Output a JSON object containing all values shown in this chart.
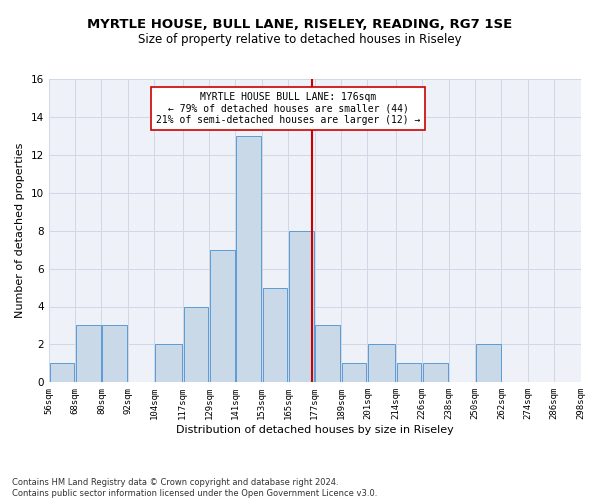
{
  "title1": "MYRTLE HOUSE, BULL LANE, RISELEY, READING, RG7 1SE",
  "title2": "Size of property relative to detached houses in Riseley",
  "xlabel": "Distribution of detached houses by size in Riseley",
  "ylabel": "Number of detached properties",
  "footnote": "Contains HM Land Registry data © Crown copyright and database right 2024.\nContains public sector information licensed under the Open Government Licence v3.0.",
  "bin_labels": [
    "56sqm",
    "68sqm",
    "80sqm",
    "92sqm",
    "104sqm",
    "117sqm",
    "129sqm",
    "141sqm",
    "153sqm",
    "165sqm",
    "177sqm",
    "189sqm",
    "201sqm",
    "214sqm",
    "226sqm",
    "238sqm",
    "250sqm",
    "262sqm",
    "274sqm",
    "286sqm",
    "298sqm"
  ],
  "bar_values": [
    1,
    3,
    3,
    0,
    2,
    4,
    7,
    13,
    5,
    8,
    3,
    1,
    2,
    1,
    1,
    0,
    2,
    0,
    0,
    0
  ],
  "bin_edges": [
    56,
    68,
    80,
    92,
    104,
    117,
    129,
    141,
    153,
    165,
    177,
    189,
    201,
    214,
    226,
    238,
    250,
    262,
    274,
    286,
    298
  ],
  "bar_facecolor": "#c9d9e8",
  "bar_edgecolor": "#5b9bd5",
  "reference_line_x": 176,
  "reference_line_color": "#cc0000",
  "annotation_text": "MYRTLE HOUSE BULL LANE: 176sqm\n← 79% of detached houses are smaller (44)\n21% of semi-detached houses are larger (12) →",
  "annotation_box_edgecolor": "#cc0000",
  "ylim": [
    0,
    16
  ],
  "yticks": [
    0,
    2,
    4,
    6,
    8,
    10,
    12,
    14,
    16
  ],
  "grid_color": "#d0d8e8",
  "background_color": "#eef2f8",
  "title1_fontsize": 9.5,
  "title2_fontsize": 8.5,
  "xlabel_fontsize": 8,
  "ylabel_fontsize": 8,
  "tick_fontsize": 6.5,
  "annotation_fontsize": 7
}
